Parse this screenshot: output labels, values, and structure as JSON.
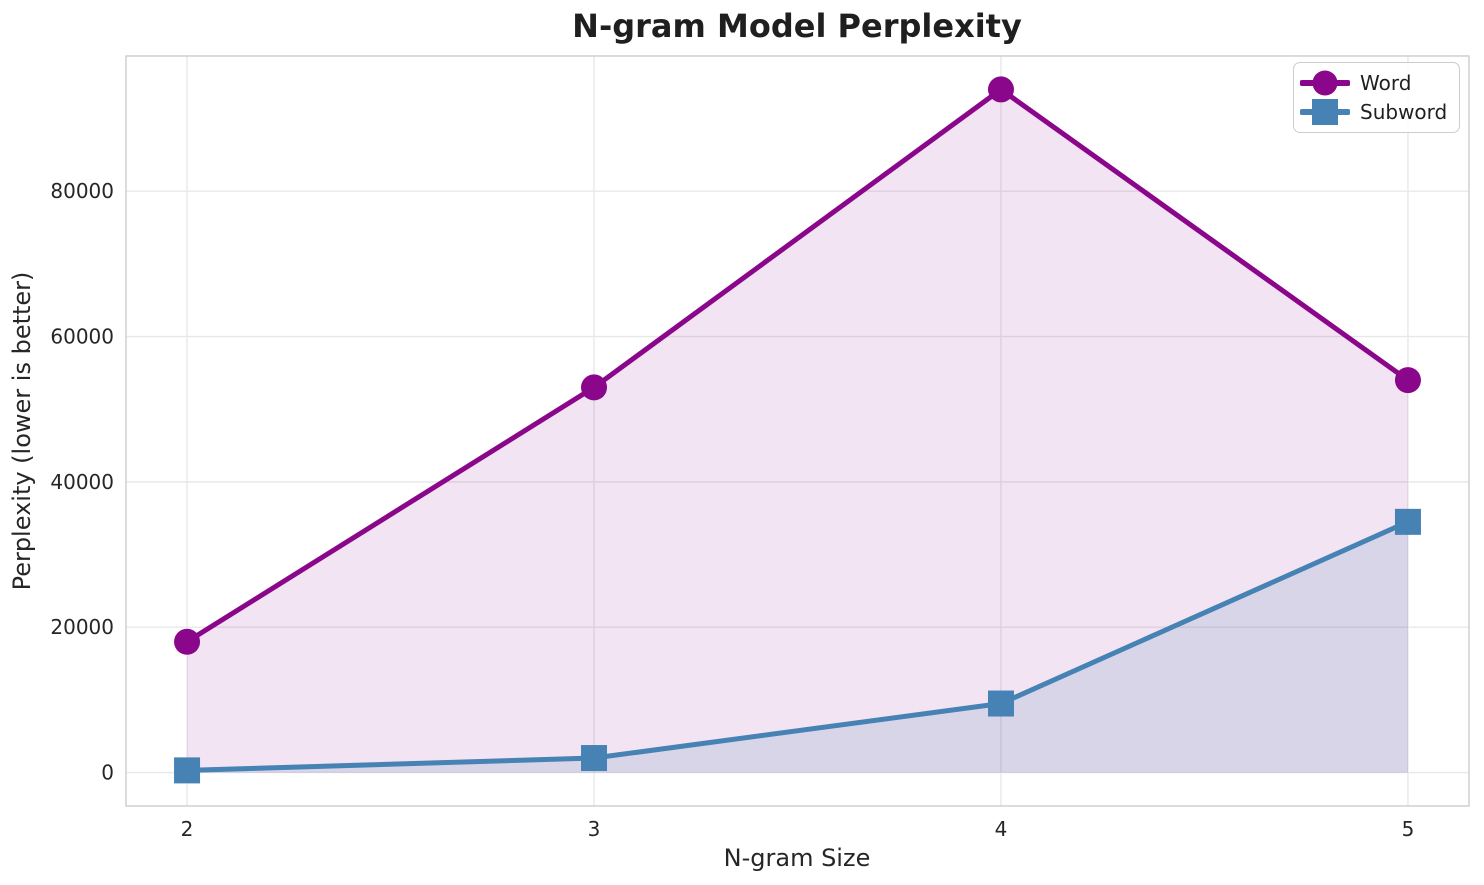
{
  "chart_data": {
    "type": "line",
    "title": "N-gram Model Perplexity",
    "xlabel": "N-gram Size",
    "ylabel": "Perplexity (lower is better)",
    "x": [
      2,
      3,
      4,
      5
    ],
    "xticks": [
      2,
      3,
      4,
      5
    ],
    "yticks": [
      0,
      20000,
      40000,
      60000,
      80000
    ],
    "xlim": [
      1.85,
      5.15
    ],
    "ylim": [
      -4600,
      98600
    ],
    "grid": true,
    "legend_position": "upper right",
    "fill_to_zero": true,
    "series": [
      {
        "name": "Word",
        "marker": "circle",
        "color": "#8A068A",
        "fill_alpha": 0.11,
        "values": [
          18000,
          53000,
          94000,
          54000
        ]
      },
      {
        "name": "Subword",
        "marker": "square",
        "color": "#4682B4",
        "fill_alpha": 0.15,
        "values": [
          300,
          2000,
          9500,
          34500
        ]
      }
    ]
  },
  "colors": {
    "background": "#FFFFFF",
    "grid": "#E8E8E8",
    "spine": "#CCCCCC",
    "text": "#262626",
    "title": "#1F1F1F"
  }
}
